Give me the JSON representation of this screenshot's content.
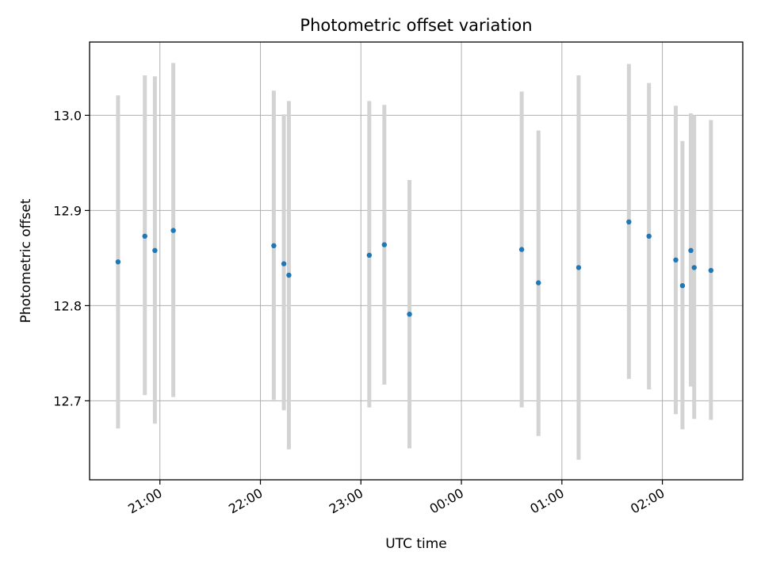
{
  "chart_data": {
    "type": "scatter",
    "title": "Photometric offset variation",
    "xlabel": "UTC time",
    "ylabel": "Photometric offset",
    "x_axis_kind": "time",
    "xlim": [
      "20:18",
      "02:48"
    ],
    "ylim": [
      12.617,
      13.077
    ],
    "grid": true,
    "x_tick_labels": [
      "21:00",
      "22:00",
      "23:00",
      "00:00",
      "01:00",
      "02:00"
    ],
    "y_tick_labels": [
      "12.7",
      "12.8",
      "12.9",
      "13.0"
    ],
    "y_ticks": [
      12.7,
      12.8,
      12.9,
      13.0
    ],
    "marker_color": "#1f77b4",
    "errorbar_color": "#d3d3d3",
    "points": [
      {
        "time": "20:35",
        "y": 12.846,
        "err_low": 12.671,
        "err_high": 13.021
      },
      {
        "time": "20:51",
        "y": 12.873,
        "err_low": 12.706,
        "err_high": 13.042
      },
      {
        "time": "20:57",
        "y": 12.858,
        "err_low": 12.676,
        "err_high": 13.041
      },
      {
        "time": "21:08",
        "y": 12.879,
        "err_low": 12.704,
        "err_high": 13.055
      },
      {
        "time": "22:08",
        "y": 12.863,
        "err_low": 12.701,
        "err_high": 13.026
      },
      {
        "time": "22:14",
        "y": 12.844,
        "err_low": 12.69,
        "err_high": 13.001
      },
      {
        "time": "22:17",
        "y": 12.832,
        "err_low": 12.649,
        "err_high": 13.015
      },
      {
        "time": "23:05",
        "y": 12.853,
        "err_low": 12.693,
        "err_high": 13.015
      },
      {
        "time": "23:14",
        "y": 12.864,
        "err_low": 12.717,
        "err_high": 13.011
      },
      {
        "time": "23:29",
        "y": 12.791,
        "err_low": 12.65,
        "err_high": 12.932
      },
      {
        "time": "00:36",
        "y": 12.859,
        "err_low": 12.693,
        "err_high": 13.025
      },
      {
        "time": "00:46",
        "y": 12.824,
        "err_low": 12.663,
        "err_high": 12.984
      },
      {
        "time": "01:10",
        "y": 12.84,
        "err_low": 12.638,
        "err_high": 13.042
      },
      {
        "time": "01:40",
        "y": 12.888,
        "err_low": 12.723,
        "err_high": 13.054
      },
      {
        "time": "01:52",
        "y": 12.873,
        "err_low": 12.712,
        "err_high": 13.034
      },
      {
        "time": "02:08",
        "y": 12.848,
        "err_low": 12.686,
        "err_high": 13.01
      },
      {
        "time": "02:12",
        "y": 12.821,
        "err_low": 12.67,
        "err_high": 12.973
      },
      {
        "time": "02:17",
        "y": 12.858,
        "err_low": 12.715,
        "err_high": 13.002
      },
      {
        "time": "02:19",
        "y": 12.84,
        "err_low": 12.681,
        "err_high": 13.0
      },
      {
        "time": "02:29",
        "y": 12.837,
        "err_low": 12.68,
        "err_high": 12.995
      }
    ]
  }
}
